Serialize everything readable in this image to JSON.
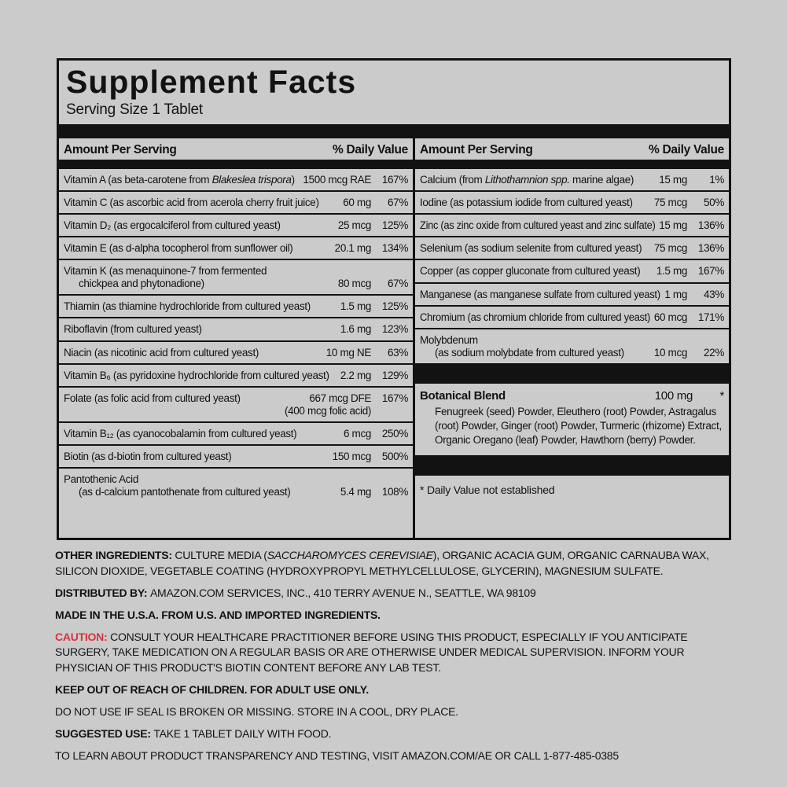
{
  "colors": {
    "background": "#cbcbcb",
    "ink": "#121212",
    "caution_red": "#d5343c"
  },
  "label": {
    "title": "Supplement Facts",
    "serving": "Serving Size 1 Tablet",
    "amount_header": "Amount Per Serving",
    "dv_header": "% Daily Value",
    "left_rows": [
      {
        "segments": [
          {
            "text": "Vitamin A (as beta-carotene from "
          },
          {
            "text": "Blakeslea trispora",
            "italic": true
          },
          {
            "text": ")"
          }
        ],
        "amount": "1500 mcg RAE",
        "dv": "167%"
      },
      {
        "segments": [
          {
            "text": "Vitamin C (as ascorbic acid from acerola cherry fruit juice)"
          }
        ],
        "amount": "60 mg",
        "dv": "67%"
      },
      {
        "segments": [
          {
            "text": "Vitamin D₂ (as ergocalciferol from cultured yeast)"
          }
        ],
        "amount": "25 mcg",
        "dv": "125%"
      },
      {
        "segments": [
          {
            "text": "Vitamin E (as d-alpha tocopherol from sunflower oil)"
          }
        ],
        "amount": "20.1 mg",
        "dv": "134%"
      },
      {
        "segments": [
          {
            "text": "Vitamin K (as menaquinone-7 from fermented"
          }
        ],
        "line2": "chickpea and phytonadione)",
        "amount": "80 mcg",
        "dv": "67%"
      },
      {
        "segments": [
          {
            "text": "Thiamin (as thiamine hydrochloride from cultured yeast)"
          }
        ],
        "amount": "1.5 mg",
        "dv": "125%"
      },
      {
        "segments": [
          {
            "text": "Riboflavin (from cultured yeast)"
          }
        ],
        "amount": "1.6 mg",
        "dv": "123%"
      },
      {
        "segments": [
          {
            "text": "Niacin (as nicotinic acid from cultured yeast)"
          }
        ],
        "amount": "10 mg NE",
        "dv": "63%"
      },
      {
        "segments": [
          {
            "text": "Vitamin B₆ (as pyridoxine hydrochloride from cultured yeast)"
          }
        ],
        "amount": "2.2 mg",
        "dv": "129%"
      },
      {
        "segments": [
          {
            "text": "Folate (as folic acid from cultured yeast)"
          }
        ],
        "amount": "667 mcg DFE",
        "amount2": "(400 mcg folic acid)",
        "dv": "167%"
      },
      {
        "segments": [
          {
            "text": "Vitamin B₁₂ (as cyanocobalamin from cultured yeast)"
          }
        ],
        "amount": "6 mcg",
        "dv": "250%"
      },
      {
        "segments": [
          {
            "text": "Biotin (as d-biotin from cultured yeast)"
          }
        ],
        "amount": "150 mcg",
        "dv": "500%"
      },
      {
        "segments": [
          {
            "text": "Pantothenic Acid"
          }
        ],
        "line2": "(as d-calcium pantothenate from cultured yeast)",
        "amount": "5.4 mg",
        "dv": "108%"
      }
    ],
    "right_rows": [
      {
        "segments": [
          {
            "text": "Calcium (from "
          },
          {
            "text": "Lithothamnion spp.",
            "italic": true
          },
          {
            "text": " marine algae)"
          }
        ],
        "amount": "15 mg",
        "dv": "1%"
      },
      {
        "segments": [
          {
            "text": "Iodine (as potassium iodide from cultured yeast)"
          }
        ],
        "amount": "75 mcg",
        "dv": "50%"
      },
      {
        "segments": [
          {
            "text": "Zinc (as zinc oxide from cultured yeast and zinc sulfate)"
          }
        ],
        "amount": "15 mg",
        "dv": "136%"
      },
      {
        "segments": [
          {
            "text": "Selenium (as sodium selenite from cultured yeast)"
          }
        ],
        "amount": "75 mcg",
        "dv": "136%"
      },
      {
        "segments": [
          {
            "text": "Copper (as copper gluconate from cultured yeast)"
          }
        ],
        "amount": "1.5 mg",
        "dv": "167%"
      },
      {
        "segments": [
          {
            "text": "Manganese (as manganese sulfate from cultured yeast)"
          }
        ],
        "amount": "1 mg",
        "dv": "43%"
      },
      {
        "segments": [
          {
            "text": "Chromium (as chromium chloride from cultured yeast)"
          }
        ],
        "amount": "60 mcg",
        "dv": "171%"
      },
      {
        "segments": [
          {
            "text": "Molybdenum"
          }
        ],
        "line2": "(as sodium molybdate from cultured yeast)",
        "amount": "10 mcg",
        "dv": "22%"
      }
    ],
    "botanical": {
      "title": "Botanical Blend",
      "amount": "100 mg",
      "dv": "*",
      "ingredients": "Fenugreek (seed) Powder, Eleuthero (root) Powder, Astragalus (root) Powder, Ginger (root) Powder, Turmeric (rhizome) Extract, Organic Oregano (leaf) Powder, Hawthorn (berry) Powder."
    },
    "footnote": "* Daily Value not established"
  },
  "footer": {
    "paragraphs": [
      {
        "segments": [
          {
            "text": "OTHER INGREDIENTS: ",
            "bold": true
          },
          {
            "text": "CULTURE MEDIA ("
          },
          {
            "text": "SACCHAROMYCES CEREVISIAE",
            "italic": true
          },
          {
            "text": "), ORGANIC ACACIA GUM, ORGANIC CARNAUBA WAX, SILICON DIOXIDE, VEGETABLE COATING (HYDROXYPROPYL METHYLCELLULOSE, GLYCERIN), MAGNESIUM SULFATE."
          }
        ]
      },
      {
        "segments": [
          {
            "text": "DISTRIBUTED BY: ",
            "bold": true
          },
          {
            "text": "AMAZON.COM SERVICES, INC., 410 TERRY AVENUE N., SEATTLE, WA 98109"
          }
        ]
      },
      {
        "segments": [
          {
            "text": "MADE IN THE U.S.A. FROM U.S. AND IMPORTED INGREDIENTS.",
            "bold": true
          }
        ]
      },
      {
        "segments": [
          {
            "text": "CAUTION: ",
            "bold": true,
            "red": true
          },
          {
            "text": "CONSULT YOUR HEALTHCARE PRACTITIONER BEFORE USING THIS PRODUCT, ESPECIALLY IF YOU ANTICIPATE SURGERY, TAKE MEDICATION ON A REGULAR BASIS OR ARE OTHERWISE UNDER MEDICAL SUPERVISION. INFORM YOUR PHYSICIAN OF THIS PRODUCT'S BIOTIN CONTENT BEFORE ANY LAB TEST."
          }
        ]
      },
      {
        "segments": [
          {
            "text": "KEEP OUT OF REACH OF CHILDREN. FOR ADULT USE ONLY.",
            "bold": true
          }
        ]
      },
      {
        "segments": [
          {
            "text": "DO NOT USE IF SEAL IS BROKEN OR MISSING. STORE IN A COOL, DRY PLACE."
          }
        ]
      },
      {
        "segments": [
          {
            "text": "SUGGESTED USE: ",
            "bold": true
          },
          {
            "text": "TAKE 1 TABLET DAILY WITH FOOD."
          }
        ]
      },
      {
        "segments": [
          {
            "text": "TO LEARN ABOUT PRODUCT TRANSPARENCY AND TESTING, VISIT AMAZON.COM/AE OR CALL 1-877-485-0385"
          }
        ]
      }
    ]
  }
}
